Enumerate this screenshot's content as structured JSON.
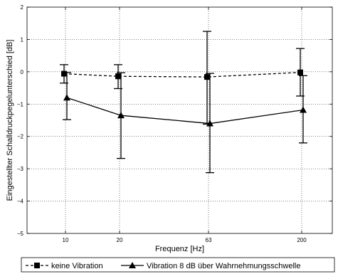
{
  "chart_data": {
    "type": "line",
    "title": "",
    "xlabel": "Frequenz [Hz]",
    "ylabel": "Eingestellter Schalldruckpegelunterschied [dB]",
    "categories": [
      "10",
      "20",
      "63",
      "200"
    ],
    "ylim": [
      -5,
      2
    ],
    "yticks": [
      "2",
      "1",
      "0",
      "−1",
      "−2",
      "−3",
      "−4",
      "−5"
    ],
    "grid": true,
    "legend_position": "bottom",
    "series": [
      {
        "name": "keine Vibration",
        "values": [
          -0.06,
          -0.14,
          -0.16,
          -0.02
        ],
        "err_low": [
          -0.35,
          -0.52,
          -1.62,
          -0.75
        ],
        "err_high": [
          0.22,
          0.22,
          1.25,
          0.72
        ],
        "style": "dashed",
        "marker": "square",
        "color": "#000000"
      },
      {
        "name": "Vibration 8 dB über Wahrnehmungsschwelle",
        "values": [
          -0.8,
          -1.35,
          -1.6,
          -1.18
        ],
        "err_low": [
          -1.48,
          -2.68,
          -3.12,
          -2.2
        ],
        "err_high": [
          -0.02,
          -0.03,
          -0.05,
          -0.12
        ],
        "style": "solid",
        "marker": "triangle",
        "color": "#000000"
      }
    ]
  }
}
